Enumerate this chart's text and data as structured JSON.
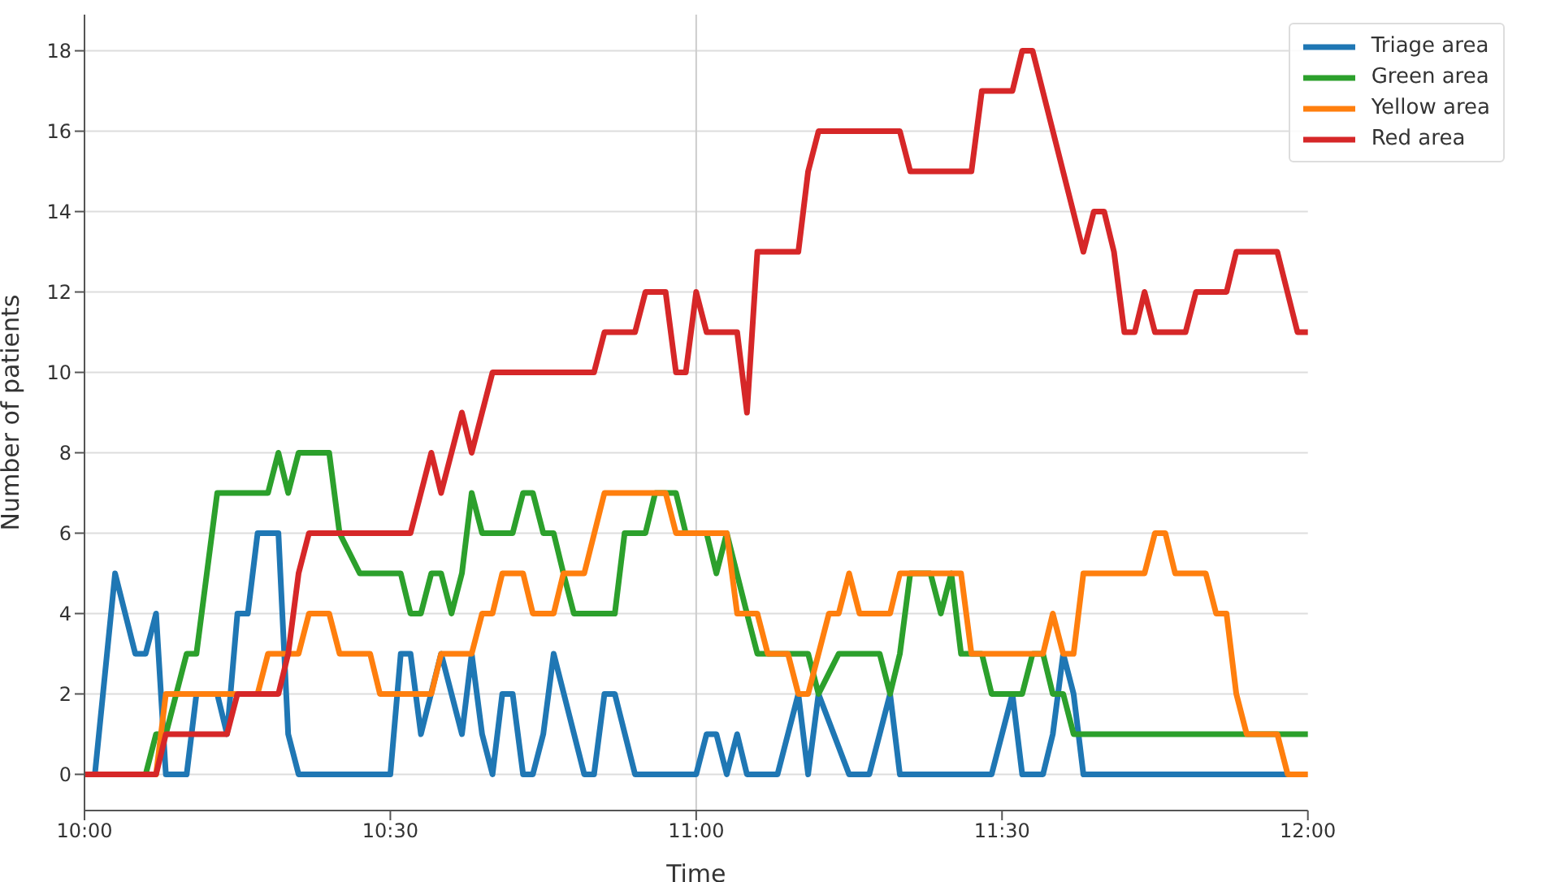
{
  "chart_data": {
    "type": "line",
    "xlabel": "Time",
    "ylabel": "Number of patients",
    "xlim": [
      10,
      12
    ],
    "xticks": [
      {
        "value": 10,
        "label": "10:00"
      },
      {
        "value": 10.5,
        "label": "10:30"
      },
      {
        "value": 11,
        "label": "11:00"
      },
      {
        "value": 11.5,
        "label": "11:30"
      },
      {
        "value": 12,
        "label": "12:00"
      }
    ],
    "ylim": [
      -0.9,
      18.9
    ],
    "yticks": [
      0,
      2,
      4,
      6,
      8,
      10,
      12,
      14,
      16,
      18
    ],
    "grid": "y",
    "legend": "top right",
    "ref_lines": [
      {
        "axis": "x",
        "value": 11,
        "color": "#cccccc"
      }
    ],
    "series": [
      {
        "name": "Triage area",
        "color": "#1f77b4",
        "x": [
          10,
          10.017,
          10.05,
          10.083,
          10.1,
          10.117,
          10.133,
          10.167,
          10.183,
          10.217,
          10.233,
          10.25,
          10.267,
          10.283,
          10.317,
          10.333,
          10.35,
          10.5,
          10.517,
          10.533,
          10.55,
          10.583,
          10.617,
          10.633,
          10.65,
          10.667,
          10.683,
          10.7,
          10.717,
          10.733,
          10.75,
          10.767,
          10.817,
          10.833,
          10.85,
          10.867,
          10.9,
          11,
          11.017,
          11.033,
          11.05,
          11.067,
          11.083,
          11.133,
          11.167,
          11.183,
          11.2,
          11.25,
          11.283,
          11.317,
          11.333,
          11.483,
          11.517,
          11.533,
          11.567,
          11.583,
          11.6,
          11.617,
          11.633,
          11.967
        ],
        "values": [
          0,
          0,
          5,
          3,
          3,
          4,
          0,
          0,
          2,
          2,
          1,
          4,
          4,
          6,
          6,
          1,
          0,
          0,
          3,
          3,
          1,
          3,
          1,
          3,
          1,
          0,
          2,
          2,
          0,
          0,
          1,
          3,
          0,
          0,
          2,
          2,
          0,
          0,
          1,
          1,
          0,
          1,
          0,
          0,
          2,
          0,
          2,
          0,
          0,
          2,
          0,
          0,
          2,
          0,
          0,
          1,
          3,
          2,
          0,
          0
        ]
      },
      {
        "name": "Green area",
        "color": "#2ca02c",
        "x": [
          10,
          10.1,
          10.117,
          10.133,
          10.167,
          10.183,
          10.217,
          10.3,
          10.317,
          10.333,
          10.35,
          10.4,
          10.417,
          10.45,
          10.517,
          10.533,
          10.55,
          10.567,
          10.583,
          10.6,
          10.617,
          10.633,
          10.65,
          10.7,
          10.717,
          10.733,
          10.75,
          10.767,
          10.783,
          10.8,
          10.867,
          10.883,
          10.917,
          10.933,
          10.967,
          10.983,
          11.017,
          11.033,
          11.05,
          11.083,
          11.1,
          11.183,
          11.2,
          11.233,
          11.3,
          11.317,
          11.333,
          11.35,
          11.383,
          11.4,
          11.417,
          11.433,
          11.467,
          11.483,
          11.533,
          11.55,
          11.567,
          11.583,
          11.6,
          11.617,
          12
        ],
        "values": [
          0,
          0,
          1,
          1,
          3,
          3,
          7,
          7,
          8,
          7,
          8,
          8,
          6,
          5,
          5,
          4,
          4,
          5,
          5,
          4,
          5,
          7,
          6,
          6,
          7,
          7,
          6,
          6,
          5,
          4,
          4,
          6,
          6,
          7,
          7,
          6,
          6,
          5,
          6,
          4,
          3,
          3,
          2,
          3,
          3,
          2,
          3,
          5,
          5,
          4,
          5,
          3,
          3,
          2,
          2,
          3,
          3,
          2,
          2,
          1,
          1
        ]
      },
      {
        "name": "Yellow area",
        "color": "#ff7f0e",
        "x": [
          10,
          10.117,
          10.133,
          10.283,
          10.3,
          10.35,
          10.367,
          10.4,
          10.417,
          10.467,
          10.483,
          10.567,
          10.583,
          10.633,
          10.65,
          10.667,
          10.683,
          10.717,
          10.733,
          10.767,
          10.783,
          10.817,
          10.85,
          10.95,
          10.967,
          11.05,
          11.067,
          11.1,
          11.117,
          11.15,
          11.167,
          11.183,
          11.217,
          11.233,
          11.25,
          11.267,
          11.317,
          11.333,
          11.433,
          11.45,
          11.567,
          11.583,
          11.6,
          11.617,
          11.633,
          11.733,
          11.75,
          11.767,
          11.783,
          11.833,
          11.85,
          11.867,
          11.883,
          11.9,
          11.95,
          11.967,
          12
        ],
        "values": [
          0,
          0,
          2,
          2,
          3,
          3,
          4,
          4,
          3,
          3,
          2,
          2,
          3,
          3,
          4,
          4,
          5,
          5,
          4,
          4,
          5,
          5,
          7,
          7,
          6,
          6,
          4,
          4,
          3,
          3,
          2,
          2,
          4,
          4,
          5,
          4,
          4,
          5,
          5,
          3,
          3,
          4,
          3,
          3,
          5,
          5,
          6,
          6,
          5,
          5,
          4,
          4,
          2,
          1,
          1,
          0,
          0
        ]
      },
      {
        "name": "Red area",
        "color": "#d62728",
        "x": [
          10,
          10.117,
          10.133,
          10.233,
          10.25,
          10.317,
          10.333,
          10.35,
          10.367,
          10.533,
          10.567,
          10.583,
          10.617,
          10.633,
          10.667,
          10.833,
          10.85,
          10.9,
          10.917,
          10.95,
          10.967,
          10.983,
          11,
          11.017,
          11.067,
          11.083,
          11.1,
          11.167,
          11.183,
          11.2,
          11.333,
          11.35,
          11.45,
          11.467,
          11.517,
          11.533,
          11.55,
          11.633,
          11.65,
          11.667,
          11.683,
          11.7,
          11.717,
          11.733,
          11.75,
          11.8,
          11.817,
          11.867,
          11.883,
          11.95,
          11.983,
          12
        ],
        "values": [
          0,
          0,
          1,
          1,
          2,
          2,
          3,
          5,
          6,
          6,
          8,
          7,
          9,
          8,
          10,
          10,
          11,
          11,
          12,
          12,
          10,
          10,
          12,
          11,
          11,
          9,
          13,
          13,
          15,
          16,
          16,
          15,
          15,
          17,
          17,
          18,
          18,
          13,
          14,
          14,
          13,
          11,
          11,
          12,
          11,
          11,
          12,
          12,
          13,
          13,
          11,
          11
        ]
      }
    ]
  }
}
